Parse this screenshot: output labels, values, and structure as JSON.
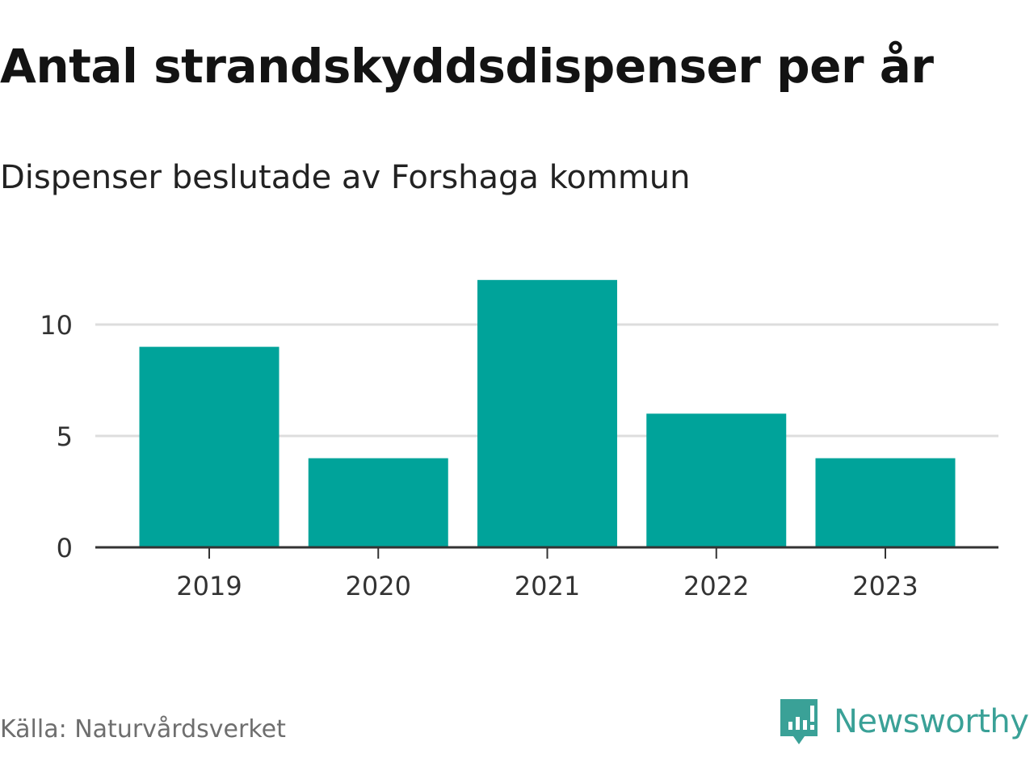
{
  "title": "Antal strandskyddsdispenser per år",
  "subtitle": "Dispenser beslutade av Forshaga kommun",
  "source": "Källa: Naturvårdsverket",
  "brand": {
    "name": "Newsworthy",
    "icon": "newsworthy-logo-icon",
    "color": "#3aa197"
  },
  "colors": {
    "bar": "#00a39a",
    "grid": "#dddddd",
    "axis": "#333333",
    "tick_text": "#333333"
  },
  "chart_data": {
    "type": "bar",
    "categories": [
      "2019",
      "2020",
      "2021",
      "2022",
      "2023"
    ],
    "values": [
      9,
      4,
      12,
      6,
      4
    ],
    "title": "Antal strandskyddsdispenser per år",
    "subtitle": "Dispenser beslutade av Forshaga kommun",
    "xlabel": "",
    "ylabel": "",
    "ylim": [
      0,
      12
    ],
    "yticks": [
      "0",
      "5",
      "10"
    ],
    "ytick_values": [
      0,
      5,
      10
    ],
    "grid": true
  }
}
